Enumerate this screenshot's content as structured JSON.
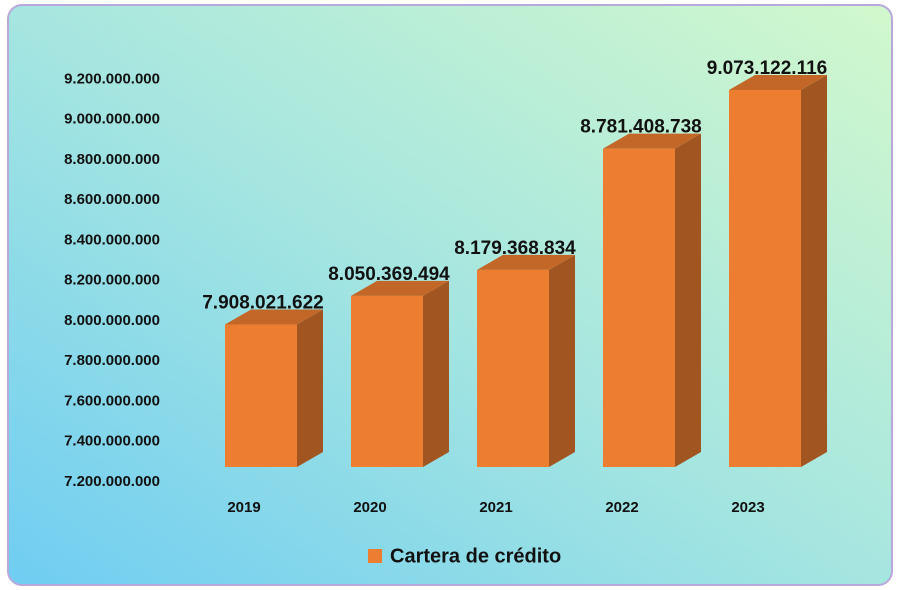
{
  "chart_data": {
    "type": "bar3d",
    "categories": [
      "2019",
      "2020",
      "2021",
      "2022",
      "2023"
    ],
    "series": [
      {
        "name": "Cartera de crédito",
        "color": "#ed7d31",
        "values": [
          7908021622,
          8050369494,
          8179368834,
          8781408738,
          9073122116
        ],
        "value_labels": [
          "7.908.021.622",
          "8.050.369.494",
          "8.179.368.834",
          "8.781.408.738",
          "9.073.122.116"
        ]
      }
    ],
    "ylim": [
      7200000000,
      9200000000
    ],
    "yticks": [
      {
        "value": 7200000000,
        "label": "7.200.000.000"
      },
      {
        "value": 7400000000,
        "label": "7.400.000.000"
      },
      {
        "value": 7600000000,
        "label": "7.600.000.000"
      },
      {
        "value": 7800000000,
        "label": "7.800.000.000"
      },
      {
        "value": 8000000000,
        "label": "8.000.000.000"
      },
      {
        "value": 8200000000,
        "label": "8.200.000.000"
      },
      {
        "value": 8400000000,
        "label": "8.400.000.000"
      },
      {
        "value": 8600000000,
        "label": "8.600.000.000"
      },
      {
        "value": 8800000000,
        "label": "8.800.000.000"
      },
      {
        "value": 9000000000,
        "label": "9.000.000.000"
      },
      {
        "value": 9200000000,
        "label": "9.200.000.000"
      }
    ],
    "grid": false,
    "legend": "bottom"
  }
}
